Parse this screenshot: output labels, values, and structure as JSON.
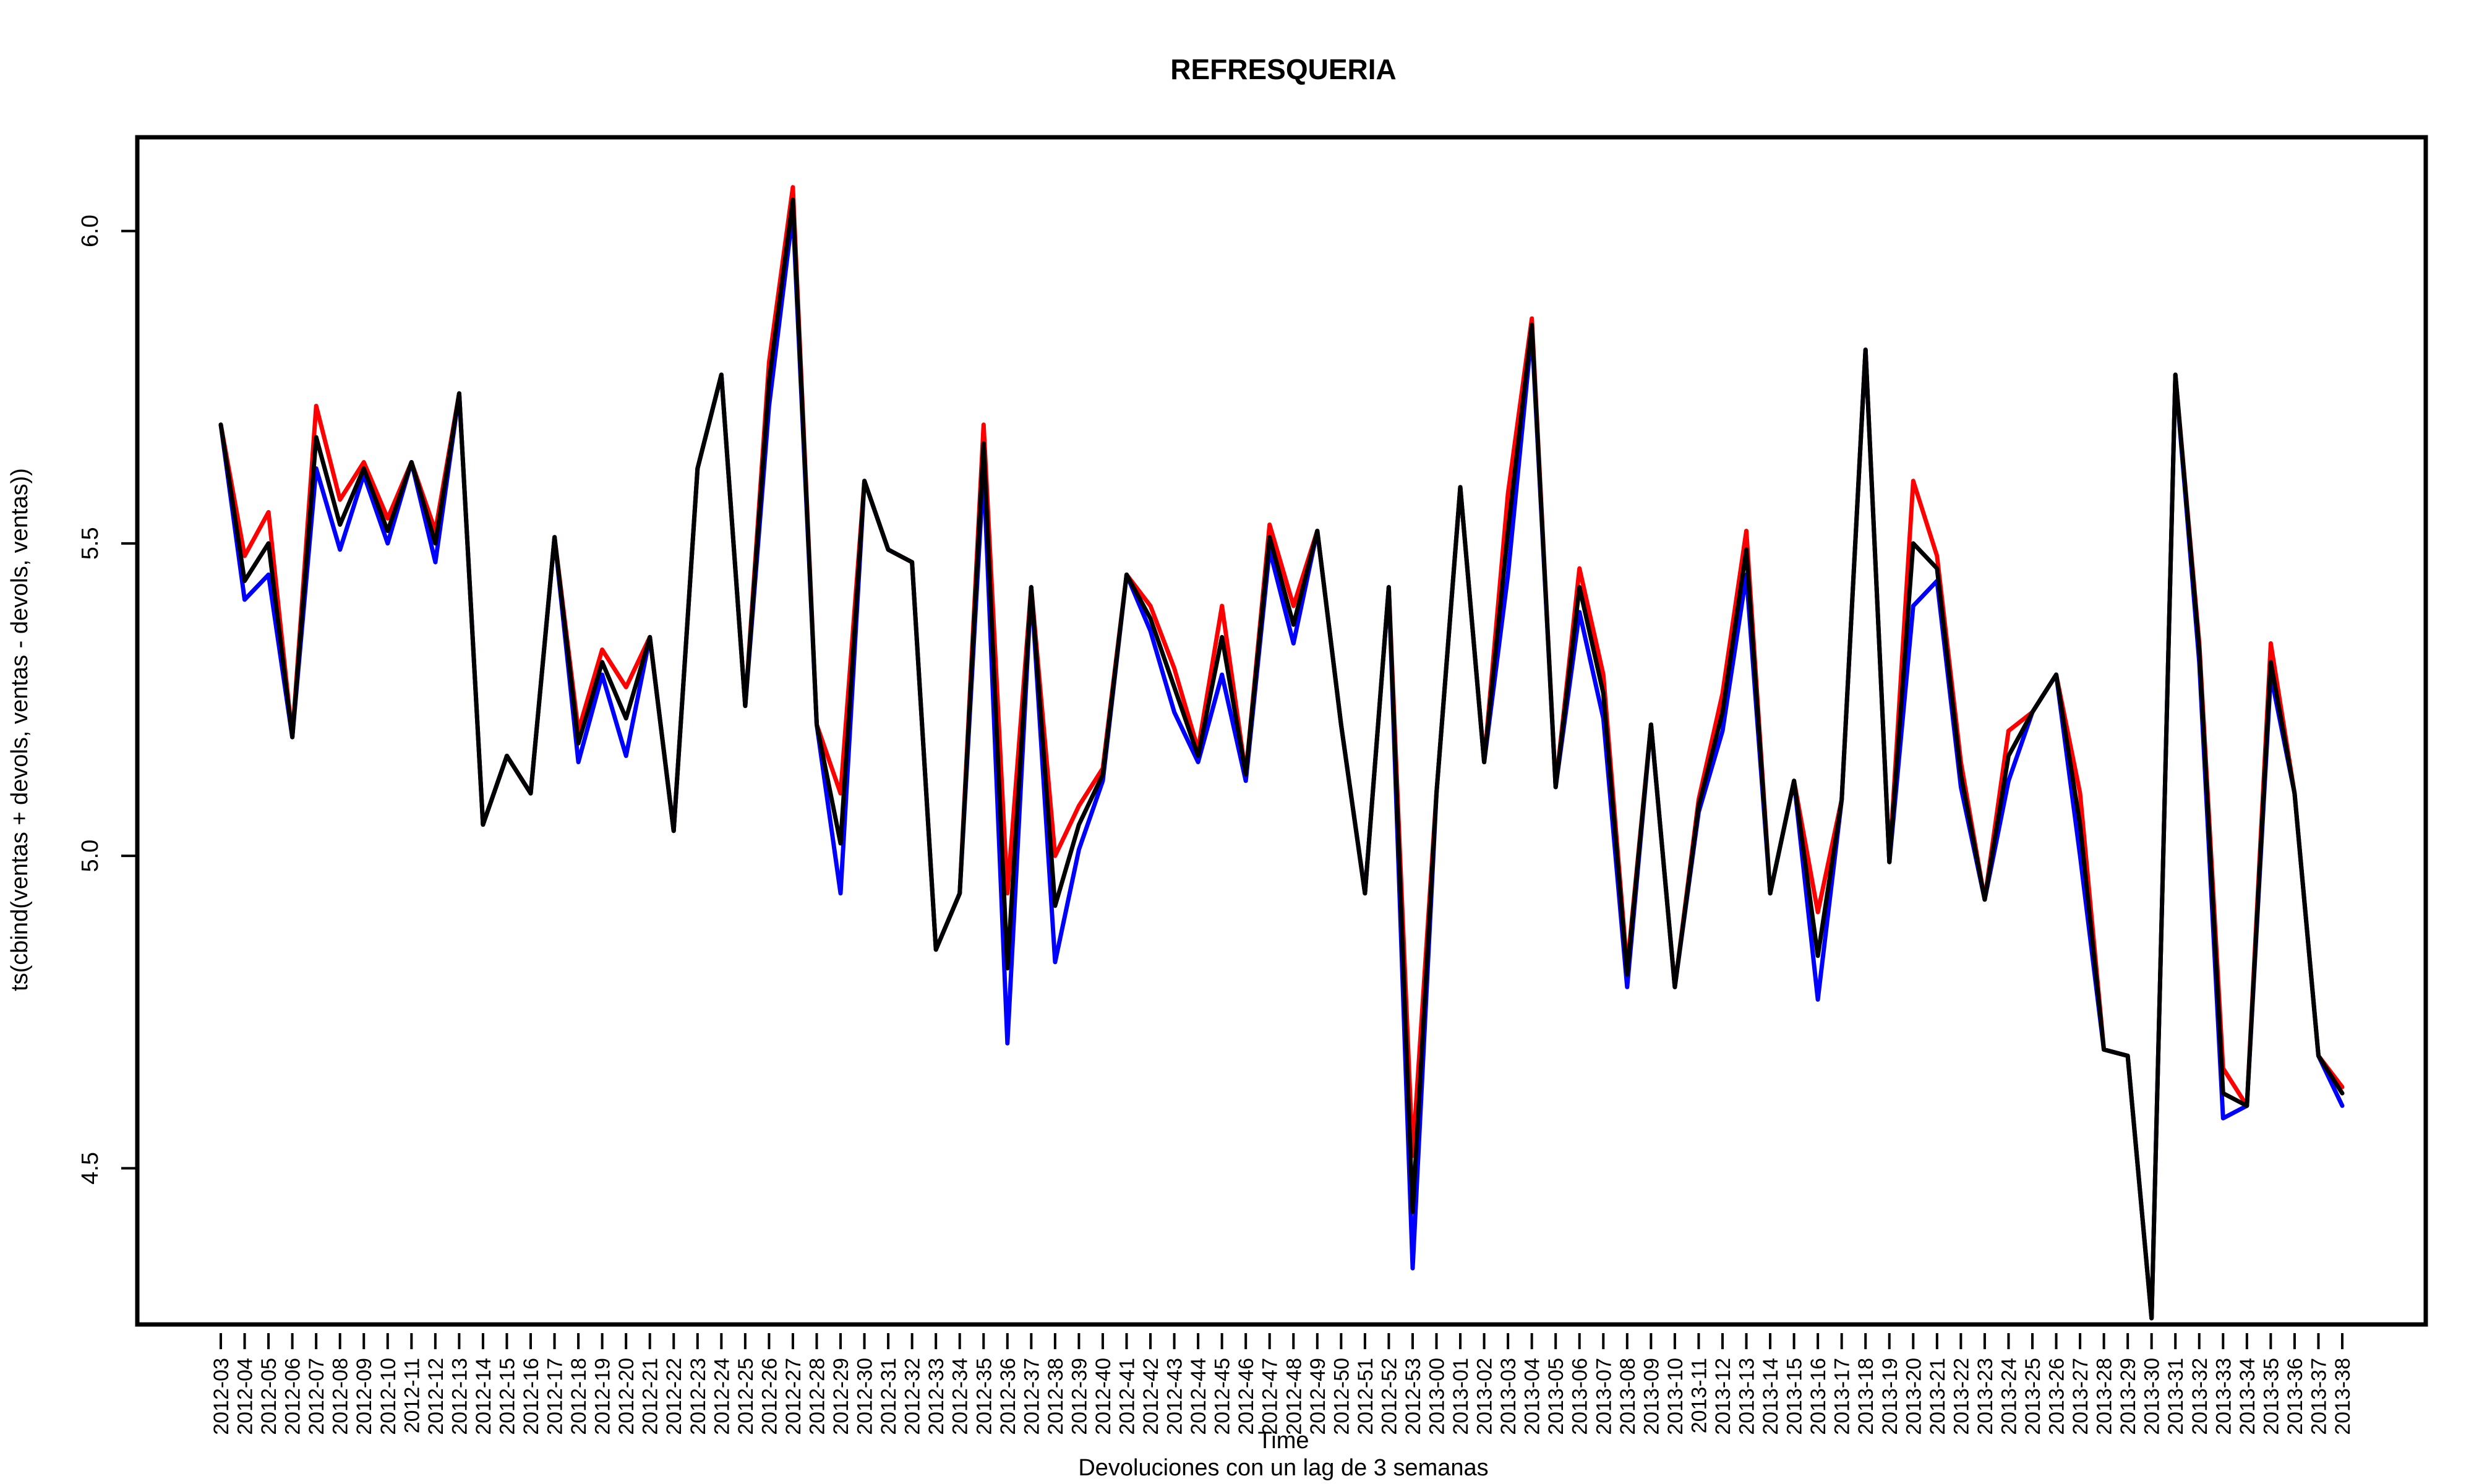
{
  "chart_data": {
    "type": "line",
    "title": "REFRESQUERIA",
    "xlabel": "Time",
    "ylabel": "ts(cbind(ventas + devols, ventas - devols, ventas))",
    "subtitle": "Devoluciones con un lag de 3 semanas",
    "ylim": [
      4.25,
      6.15
    ],
    "yticks": [
      4.5,
      5.0,
      5.5,
      6.0
    ],
    "ytick_labels": [
      "4.5",
      "5.0",
      "5.5",
      "6.0"
    ],
    "grid": false,
    "legend": "none",
    "categories": [
      "2012-03",
      "2012-04",
      "2012-05",
      "2012-06",
      "2012-07",
      "2012-08",
      "2012-09",
      "2012-10",
      "2012-11",
      "2012-12",
      "2012-13",
      "2012-14",
      "2012-15",
      "2012-16",
      "2012-17",
      "2012-18",
      "2012-19",
      "2012-20",
      "2012-21",
      "2012-22",
      "2012-23",
      "2012-24",
      "2012-25",
      "2012-26",
      "2012-27",
      "2012-28",
      "2012-29",
      "2012-30",
      "2012-31",
      "2012-32",
      "2012-33",
      "2012-34",
      "2012-35",
      "2012-36",
      "2012-37",
      "2012-38",
      "2012-39",
      "2012-40",
      "2012-41",
      "2012-42",
      "2012-43",
      "2012-44",
      "2012-45",
      "2012-46",
      "2012-47",
      "2012-48",
      "2012-49",
      "2012-50",
      "2012-51",
      "2012-52",
      "2012-53",
      "2013-00",
      "2013-01",
      "2013-02",
      "2013-03",
      "2013-04",
      "2013-05",
      "2013-06",
      "2013-07",
      "2013-08",
      "2013-09",
      "2013-10",
      "2013-11",
      "2013-12",
      "2013-13",
      "2013-14",
      "2013-15",
      "2013-16",
      "2013-17",
      "2013-18",
      "2013-19",
      "2013-20",
      "2013-21",
      "2013-22",
      "2013-23",
      "2013-24",
      "2013-25",
      "2013-26",
      "2013-27",
      "2013-28",
      "2013-29",
      "2013-30",
      "2013-31",
      "2013-32",
      "2013-33",
      "2013-34",
      "2013-35",
      "2013-36",
      "2013-37",
      "2013-38"
    ],
    "series": [
      {
        "color": "#ff0000",
        "values": [
          5.69,
          5.48,
          5.55,
          5.19,
          5.72,
          5.57,
          5.63,
          5.54,
          5.63,
          5.52,
          5.74,
          5.05,
          5.16,
          5.1,
          5.51,
          5.2,
          5.33,
          5.27,
          5.35,
          5.04,
          5.62,
          5.77,
          5.24,
          5.79,
          6.07,
          5.21,
          5.1,
          5.6,
          5.49,
          5.47,
          4.85,
          4.94,
          5.69,
          4.94,
          5.43,
          5.0,
          5.08,
          5.14,
          5.45,
          5.4,
          5.3,
          5.17,
          5.4,
          5.13,
          5.53,
          5.4,
          5.52,
          5.21,
          4.94,
          5.43,
          4.52,
          5.1,
          5.59,
          5.15,
          5.58,
          5.86,
          5.11,
          5.46,
          5.29,
          4.82,
          5.21,
          4.79,
          5.09,
          5.26,
          5.52,
          4.94,
          5.12,
          4.91,
          5.09,
          5.81,
          4.99,
          5.6,
          5.48,
          5.15,
          4.93,
          5.2,
          5.23,
          5.29,
          5.1,
          4.69,
          4.68,
          4.26,
          5.77,
          5.34,
          4.66,
          4.6,
          5.34,
          5.1,
          4.68,
          4.63
        ]
      },
      {
        "color": "#0000ff",
        "values": [
          5.69,
          5.41,
          5.45,
          5.19,
          5.62,
          5.49,
          5.61,
          5.5,
          5.63,
          5.47,
          5.74,
          5.05,
          5.16,
          5.1,
          5.51,
          5.15,
          5.29,
          5.16,
          5.35,
          5.04,
          5.62,
          5.77,
          5.24,
          5.72,
          6.03,
          5.21,
          4.94,
          5.6,
          5.49,
          5.47,
          4.85,
          4.94,
          5.62,
          4.7,
          5.43,
          4.83,
          5.01,
          5.12,
          5.45,
          5.36,
          5.23,
          5.15,
          5.29,
          5.12,
          5.49,
          5.34,
          5.52,
          5.21,
          4.94,
          5.43,
          4.34,
          5.1,
          5.59,
          5.15,
          5.45,
          5.84,
          5.11,
          5.39,
          5.22,
          4.79,
          5.21,
          4.79,
          5.07,
          5.2,
          5.45,
          4.94,
          5.12,
          4.77,
          5.09,
          5.81,
          4.99,
          5.4,
          5.44,
          5.11,
          4.93,
          5.12,
          5.23,
          5.29,
          5.0,
          4.69,
          4.68,
          4.26,
          5.77,
          5.31,
          4.58,
          4.6,
          5.29,
          5.1,
          4.68,
          4.6
        ]
      },
      {
        "color": "#000000",
        "values": [
          5.69,
          5.44,
          5.5,
          5.19,
          5.67,
          5.53,
          5.62,
          5.52,
          5.63,
          5.5,
          5.74,
          5.05,
          5.16,
          5.1,
          5.51,
          5.18,
          5.31,
          5.22,
          5.35,
          5.04,
          5.62,
          5.77,
          5.24,
          5.76,
          6.05,
          5.21,
          5.02,
          5.6,
          5.49,
          5.47,
          4.85,
          4.94,
          5.66,
          4.82,
          5.43,
          4.92,
          5.05,
          5.13,
          5.45,
          5.38,
          5.27,
          5.16,
          5.35,
          5.13,
          5.51,
          5.37,
          5.52,
          5.21,
          4.94,
          5.43,
          4.43,
          5.1,
          5.59,
          5.15,
          5.52,
          5.85,
          5.11,
          5.43,
          5.26,
          4.81,
          5.21,
          4.79,
          5.08,
          5.23,
          5.49,
          4.94,
          5.12,
          4.84,
          5.09,
          5.81,
          4.99,
          5.5,
          5.46,
          5.13,
          4.93,
          5.16,
          5.23,
          5.29,
          5.05,
          4.69,
          4.68,
          4.26,
          5.77,
          5.33,
          4.62,
          4.6,
          5.31,
          5.1,
          4.68,
          4.62
        ]
      }
    ]
  }
}
